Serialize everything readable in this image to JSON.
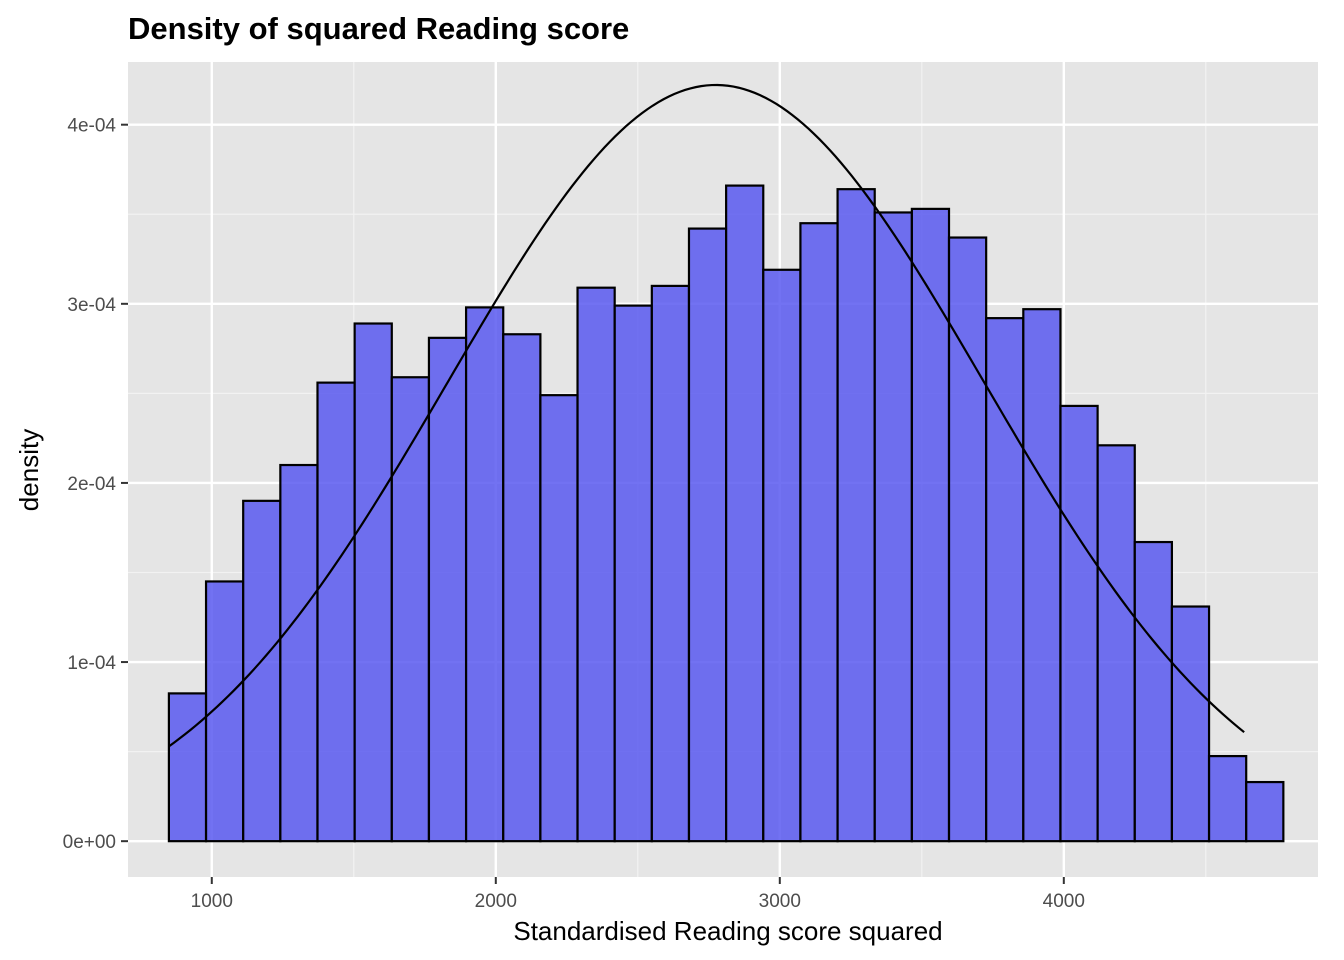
{
  "chart_data": {
    "type": "bar",
    "title": "Density of squared Reading score",
    "xlabel": "Standardised Reading score squared",
    "ylabel": "density",
    "xlim": [
      705,
      4895
    ],
    "ylim": [
      -2e-05,
      0.000435
    ],
    "x_ticks": [
      {
        "value": 1000,
        "label": "1000"
      },
      {
        "value": 2000,
        "label": "2000"
      },
      {
        "value": 3000,
        "label": "3000"
      },
      {
        "value": 4000,
        "label": "4000"
      }
    ],
    "y_ticks": [
      {
        "value": 0,
        "label": "0e+00"
      },
      {
        "value": 0.0001,
        "label": "1e-04"
      },
      {
        "value": 0.0002,
        "label": "2e-04"
      },
      {
        "value": 0.0003,
        "label": "3e-04"
      },
      {
        "value": 0.0004,
        "label": "4e-04"
      }
    ],
    "grid": true,
    "background": "#e5e5e5",
    "bar_fill": "#5959f0",
    "bar_stroke": "#000000",
    "curve_color": "#000000",
    "histogram": {
      "bin_start": 849,
      "bin_width": 130.8,
      "densities": [
        8.25e-05,
        0.000145,
        0.00019,
        0.00021,
        0.000256,
        0.000289,
        0.000259,
        0.000281,
        0.000298,
        0.000283,
        0.000249,
        0.000309,
        0.000299,
        0.00031,
        0.000342,
        0.000366,
        0.000319,
        0.000345,
        0.000364,
        0.000351,
        0.000353,
        0.000337,
        0.000292,
        0.000297,
        0.000243,
        0.000221,
        0.000167,
        0.000131,
        4.75e-05,
        3.3e-05
      ]
    },
    "normal_curve": {
      "mean": 2775,
      "sd": 945,
      "x_range": [
        849,
        4635
      ]
    }
  }
}
